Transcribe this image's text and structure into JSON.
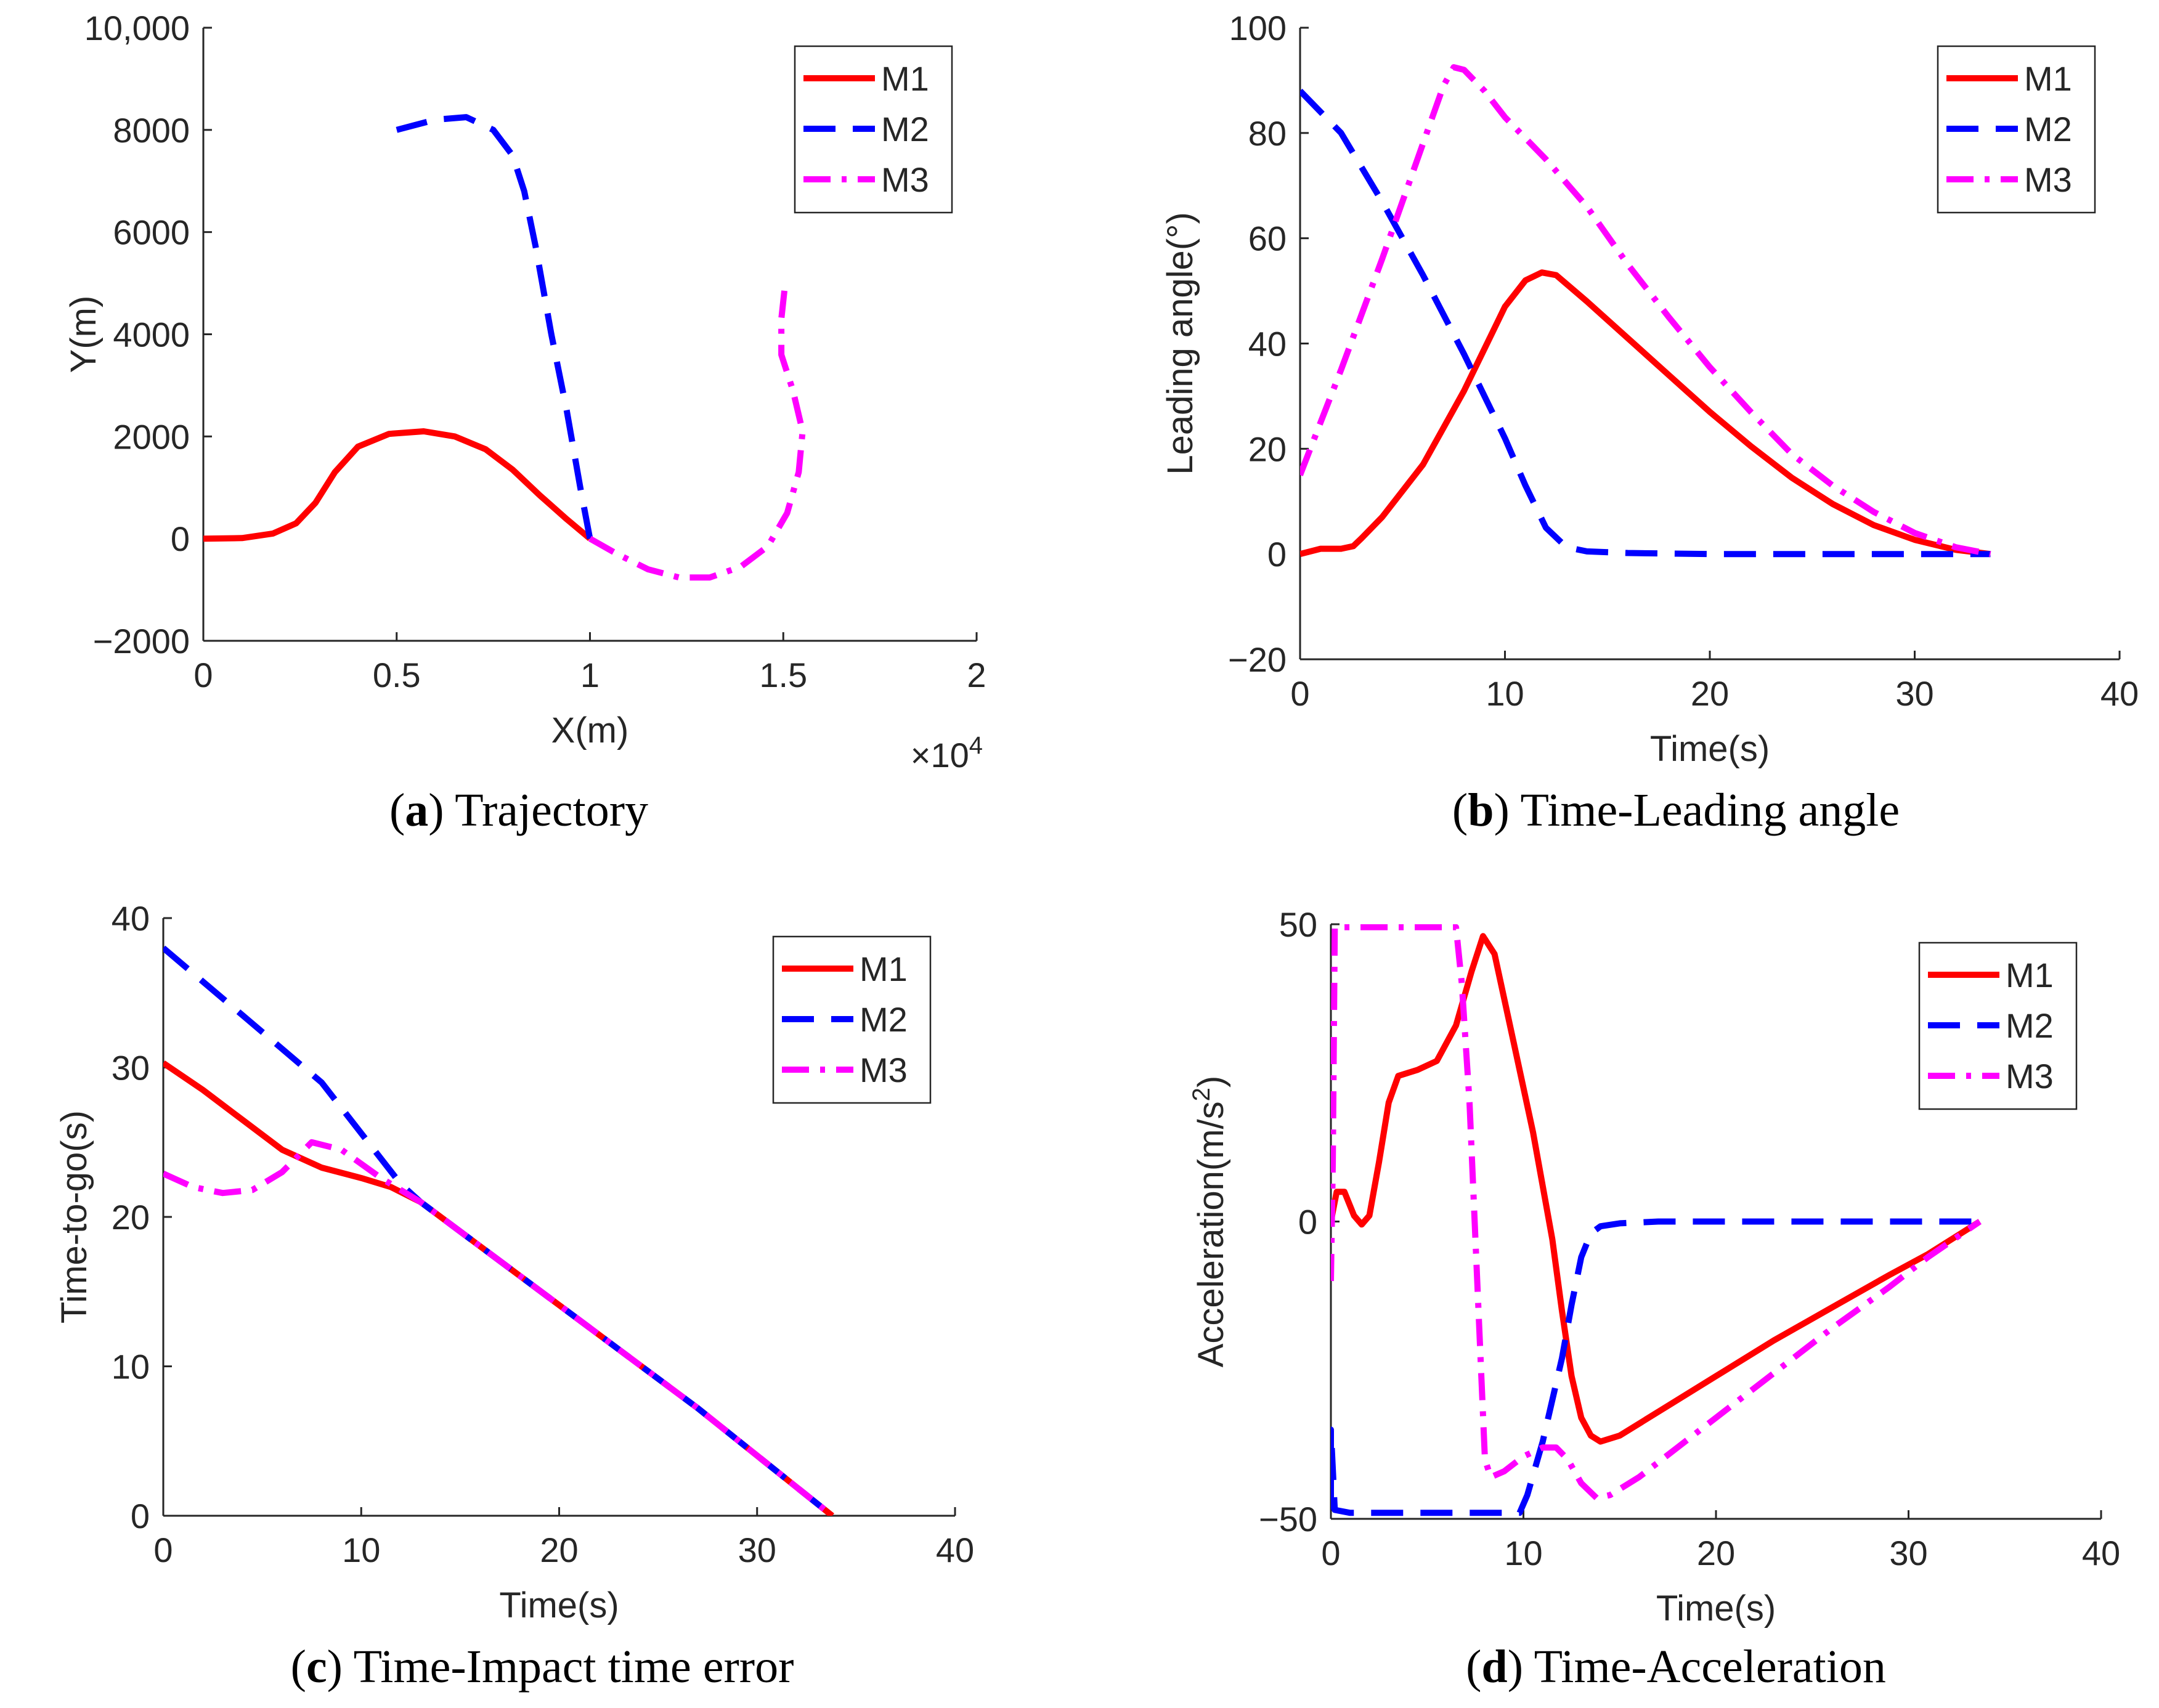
{
  "colors": {
    "M1": "#ff0000",
    "M2": "#0000ff",
    "M3": "#ff00ff",
    "axis": "#262626"
  },
  "chart_data": [
    {
      "id": "a",
      "type": "line",
      "caption_letter": "a",
      "caption_text": " Trajectory",
      "xlabel": "X(m)",
      "ylabel": "Y(m)",
      "x_multiplier_label": "×10",
      "x_multiplier_exp": "4",
      "xlim": [
        0,
        20000
      ],
      "ylim": [
        -2000,
        10000
      ],
      "xticks": [
        0,
        5000,
        10000,
        15000,
        20000
      ],
      "xtick_labels": [
        "0",
        "0.5",
        "1",
        "1.5",
        "2"
      ],
      "yticks": [
        -2000,
        0,
        2000,
        4000,
        6000,
        8000,
        10000
      ],
      "ytick_labels": [
        "−2000",
        "0",
        "2000",
        "4000",
        "6000",
        "8000",
        "10,000"
      ],
      "legend_position": "top-right",
      "series": [
        {
          "name": "M1",
          "style": "solid",
          "points": [
            [
              0,
              0
            ],
            [
              1000,
              10
            ],
            [
              1800,
              100
            ],
            [
              2400,
              300
            ],
            [
              2900,
              700
            ],
            [
              3400,
              1300
            ],
            [
              4000,
              1800
            ],
            [
              4800,
              2050
            ],
            [
              5700,
              2100
            ],
            [
              6500,
              2000
            ],
            [
              7300,
              1750
            ],
            [
              8000,
              1350
            ],
            [
              8700,
              850
            ],
            [
              9400,
              380
            ],
            [
              10000,
              0
            ]
          ]
        },
        {
          "name": "M2",
          "style": "dashed",
          "points": [
            [
              10000,
              0
            ],
            [
              9750,
              1000
            ],
            [
              9400,
              2500
            ],
            [
              9000,
              4000
            ],
            [
              8600,
              5700
            ],
            [
              8300,
              6800
            ],
            [
              8000,
              7500
            ],
            [
              7500,
              8000
            ],
            [
              6800,
              8250
            ],
            [
              6000,
              8200
            ],
            [
              5000,
              8000
            ]
          ]
        },
        {
          "name": "M3",
          "style": "dashdot",
          "points": [
            [
              10000,
              0
            ],
            [
              10700,
              -300
            ],
            [
              11500,
              -600
            ],
            [
              12300,
              -760
            ],
            [
              13100,
              -760
            ],
            [
              13900,
              -550
            ],
            [
              14600,
              -150
            ],
            [
              15100,
              500
            ],
            [
              15400,
              1300
            ],
            [
              15500,
              2100
            ],
            [
              15250,
              2900
            ],
            [
              14950,
              3600
            ],
            [
              14950,
              4300
            ],
            [
              15050,
              5000
            ]
          ]
        }
      ]
    },
    {
      "id": "b",
      "type": "line",
      "caption_letter": "b",
      "caption_text": " Time-Leading angle",
      "xlabel": "Time(s)",
      "ylabel": "Leading angle(°)",
      "xlim": [
        0,
        40
      ],
      "ylim": [
        -20,
        100
      ],
      "xticks": [
        0,
        10,
        20,
        30,
        40
      ],
      "xtick_labels": [
        "0",
        "10",
        "20",
        "30",
        "40"
      ],
      "yticks": [
        -20,
        0,
        20,
        40,
        60,
        80,
        100
      ],
      "ytick_labels": [
        "−20",
        "0",
        "20",
        "40",
        "60",
        "80",
        "100"
      ],
      "legend_position": "top-right",
      "series": [
        {
          "name": "M1",
          "style": "solid",
          "points": [
            [
              0,
              0
            ],
            [
              1,
              1
            ],
            [
              2,
              1
            ],
            [
              2.6,
              1.5
            ],
            [
              3,
              3
            ],
            [
              4,
              7
            ],
            [
              5,
              12
            ],
            [
              6,
              17
            ],
            [
              7,
              24
            ],
            [
              8,
              31
            ],
            [
              9,
              39
            ],
            [
              10,
              47
            ],
            [
              11,
              52
            ],
            [
              11.8,
              53.5
            ],
            [
              12.5,
              53
            ],
            [
              14,
              48
            ],
            [
              16,
              41
            ],
            [
              18,
              34
            ],
            [
              20,
              27
            ],
            [
              22,
              20.5
            ],
            [
              24,
              14.5
            ],
            [
              26,
              9.5
            ],
            [
              28,
              5.5
            ],
            [
              30,
              2.7
            ],
            [
              32,
              0.8
            ],
            [
              33.7,
              0
            ]
          ]
        },
        {
          "name": "M2",
          "style": "dashed",
          "points": [
            [
              0,
              88
            ],
            [
              2,
              80
            ],
            [
              4,
              67
            ],
            [
              6,
              53
            ],
            [
              8,
              38
            ],
            [
              10,
              22
            ],
            [
              11,
              13
            ],
            [
              12,
              5
            ],
            [
              13,
              1.3
            ],
            [
              14,
              0.5
            ],
            [
              16,
              0.2
            ],
            [
              20,
              0
            ],
            [
              25,
              0
            ],
            [
              30,
              0
            ],
            [
              33.7,
              0
            ]
          ]
        },
        {
          "name": "M3",
          "style": "dashdot",
          "points": [
            [
              0,
              15
            ],
            [
              2,
              35
            ],
            [
              4,
              56
            ],
            [
              6,
              78
            ],
            [
              7,
              89
            ],
            [
              7.5,
              92.5
            ],
            [
              8,
              92
            ],
            [
              9,
              88
            ],
            [
              10,
              83
            ],
            [
              12,
              75
            ],
            [
              14,
              66
            ],
            [
              16,
              55
            ],
            [
              18,
              45
            ],
            [
              20,
              35.5
            ],
            [
              22,
              27
            ],
            [
              24,
              19
            ],
            [
              26,
              13
            ],
            [
              28,
              8
            ],
            [
              30,
              4
            ],
            [
              32,
              1.3
            ],
            [
              33.7,
              0
            ]
          ]
        }
      ]
    },
    {
      "id": "c",
      "type": "line",
      "caption_letter": "c",
      "caption_text": " Time-Impact time error",
      "xlabel": "Time(s)",
      "ylabel": "Time-to-go(s)",
      "xlim": [
        0,
        40
      ],
      "ylim": [
        0,
        40
      ],
      "xticks": [
        0,
        10,
        20,
        30,
        40
      ],
      "xtick_labels": [
        "0",
        "10",
        "20",
        "30",
        "40"
      ],
      "yticks": [
        0,
        10,
        20,
        30,
        40
      ],
      "ytick_labels": [
        "0",
        "10",
        "20",
        "30",
        "40"
      ],
      "legend_position": "top-right",
      "series": [
        {
          "name": "M1",
          "style": "solid",
          "points": [
            [
              0,
              30.3
            ],
            [
              2,
              28.5
            ],
            [
              4,
              26.5
            ],
            [
              6,
              24.5
            ],
            [
              8,
              23.3
            ],
            [
              10,
              22.6
            ],
            [
              11.5,
              22
            ],
            [
              13,
              21
            ],
            [
              20,
              14.1
            ],
            [
              27,
              7.2
            ],
            [
              33.8,
              0
            ]
          ]
        },
        {
          "name": "M2",
          "style": "dashed",
          "points": [
            [
              0,
              38
            ],
            [
              4,
              33.5
            ],
            [
              8,
              29
            ],
            [
              12,
              22.2
            ],
            [
              13,
              21
            ],
            [
              20,
              14.1
            ],
            [
              27,
              7.2
            ],
            [
              33.8,
              0
            ]
          ]
        },
        {
          "name": "M3",
          "style": "dashdot",
          "points": [
            [
              0,
              22.9
            ],
            [
              1.5,
              22
            ],
            [
              3,
              21.6
            ],
            [
              4.5,
              21.8
            ],
            [
              6,
              23
            ],
            [
              7.5,
              25
            ],
            [
              9,
              24.5
            ],
            [
              11,
              22.6
            ],
            [
              13,
              21
            ],
            [
              20,
              14.1
            ],
            [
              27,
              7.2
            ],
            [
              33.8,
              0
            ]
          ]
        }
      ]
    },
    {
      "id": "d",
      "type": "line",
      "caption_letter": "d",
      "caption_text": " Time-Acceleration",
      "xlabel": "Time(s)",
      "ylabel": "Acceleration(m/s",
      "ylabel_sup": "2",
      "ylabel_end": ")",
      "xlim": [
        0,
        40
      ],
      "ylim": [
        -50,
        50
      ],
      "xticks": [
        0,
        10,
        20,
        30,
        40
      ],
      "xtick_labels": [
        "0",
        "10",
        "20",
        "30",
        "40"
      ],
      "yticks": [
        -50,
        0,
        50
      ],
      "ytick_labels": [
        "−50",
        "0",
        "50"
      ],
      "legend_position": "top-right",
      "series": [
        {
          "name": "M1",
          "style": "solid",
          "points": [
            [
              0,
              0
            ],
            [
              0.3,
              5
            ],
            [
              0.7,
              5
            ],
            [
              1.2,
              1
            ],
            [
              1.6,
              -0.5
            ],
            [
              2,
              1
            ],
            [
              2.5,
              10
            ],
            [
              3,
              20
            ],
            [
              3.5,
              24.5
            ],
            [
              4.5,
              25.5
            ],
            [
              5.5,
              27
            ],
            [
              6.5,
              33
            ],
            [
              7.3,
              42
            ],
            [
              7.9,
              48
            ],
            [
              8.5,
              45
            ],
            [
              9.5,
              30
            ],
            [
              10.5,
              15
            ],
            [
              11.5,
              -3
            ],
            [
              12,
              -15
            ],
            [
              12.5,
              -26
            ],
            [
              13,
              -33
            ],
            [
              13.5,
              -36
            ],
            [
              14,
              -37
            ],
            [
              15,
              -36
            ],
            [
              17,
              -32
            ],
            [
              20,
              -26
            ],
            [
              23,
              -20
            ],
            [
              26,
              -14.5
            ],
            [
              29,
              -9
            ],
            [
              31,
              -5.5
            ],
            [
              33.7,
              0
            ]
          ]
        },
        {
          "name": "M2",
          "style": "dashed",
          "points": [
            [
              0,
              -48.5
            ],
            [
              0,
              -35
            ],
            [
              0.2,
              -48.5
            ],
            [
              1,
              -49
            ],
            [
              5,
              -49
            ],
            [
              9.8,
              -49
            ],
            [
              10.2,
              -46
            ],
            [
              11,
              -37
            ],
            [
              12,
              -23
            ],
            [
              12.5,
              -14
            ],
            [
              13,
              -6
            ],
            [
              13.5,
              -2
            ],
            [
              14,
              -0.8
            ],
            [
              15,
              -0.3
            ],
            [
              17,
              0
            ],
            [
              20,
              0
            ],
            [
              25,
              0
            ],
            [
              30,
              0
            ],
            [
              33.7,
              0
            ]
          ]
        },
        {
          "name": "M3",
          "style": "dashdot",
          "points": [
            [
              0,
              -10
            ],
            [
              0.1,
              10
            ],
            [
              0.2,
              49.5
            ],
            [
              1,
              49.5
            ],
            [
              4,
              49.5
            ],
            [
              6.5,
              49.5
            ],
            [
              6.8,
              40
            ],
            [
              7.2,
              20
            ],
            [
              7.6,
              -10
            ],
            [
              8,
              -40
            ],
            [
              8.3,
              -43
            ],
            [
              9,
              -42
            ],
            [
              10,
              -39.5
            ],
            [
              11,
              -38
            ],
            [
              11.7,
              -38
            ],
            [
              12.3,
              -40
            ],
            [
              13,
              -44
            ],
            [
              13.8,
              -46.5
            ],
            [
              14.5,
              -46
            ],
            [
              16,
              -43
            ],
            [
              18,
              -38
            ],
            [
              20,
              -33
            ],
            [
              23,
              -25.5
            ],
            [
              26,
              -18
            ],
            [
              29,
              -11
            ],
            [
              31,
              -6
            ],
            [
              33.7,
              0
            ]
          ]
        }
      ]
    }
  ]
}
